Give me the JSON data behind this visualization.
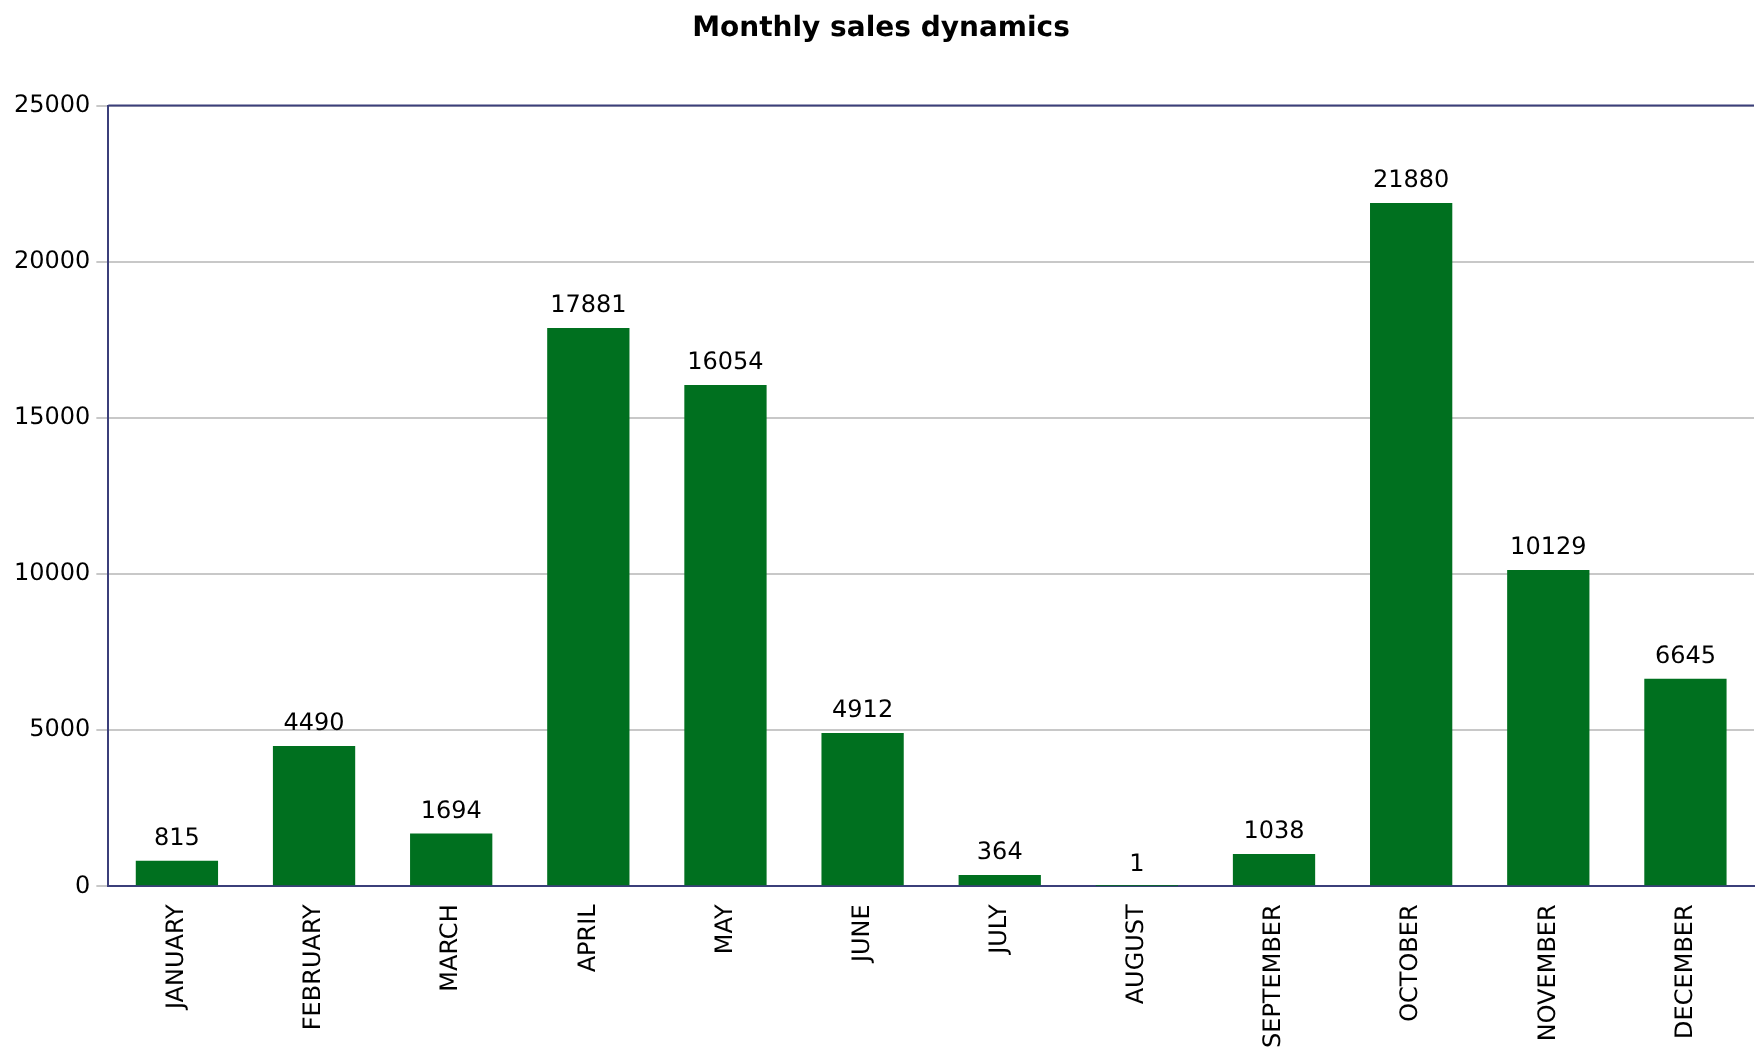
{
  "chart_data": {
    "type": "bar",
    "title": "Monthly sales dynamics",
    "categories": [
      "JANUARY",
      "FEBRUARY",
      "MARCH",
      "APRIL",
      "MAY",
      "JUNE",
      "JULY",
      "AUGUST",
      "SEPTEMBER",
      "OCTOBER",
      "NOVEMBER",
      "DECEMBER"
    ],
    "values": [
      815,
      4490,
      1694,
      17881,
      16054,
      4912,
      364,
      1,
      1038,
      21880,
      10129,
      6645
    ],
    "color": "#00701f",
    "ylim": [
      0,
      25000
    ],
    "yticks": [
      0,
      5000,
      10000,
      15000,
      20000,
      25000
    ],
    "grid": "y",
    "data_labels": true
  }
}
